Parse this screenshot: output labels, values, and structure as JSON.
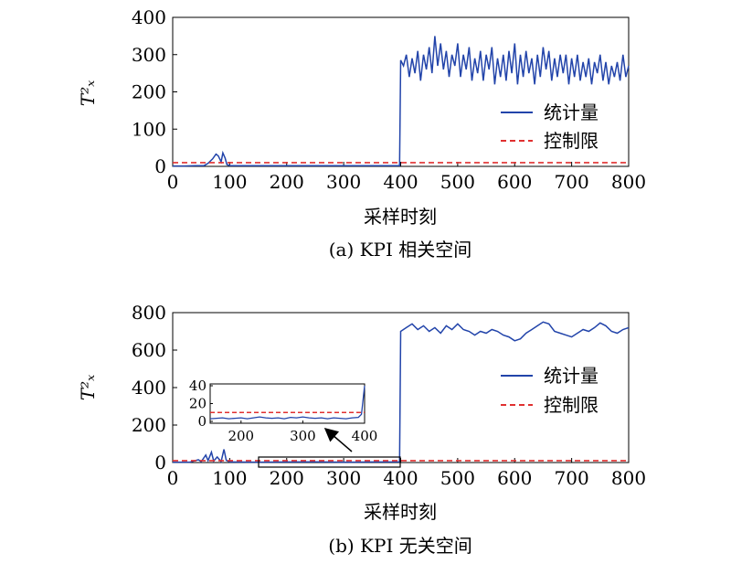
{
  "legend": {
    "series_label": "统计量",
    "limit_label": "控制限"
  },
  "colors": {
    "series": "#2244aa",
    "limit": "#e03030",
    "axis": "#000000"
  },
  "chart_data": [
    {
      "type": "line",
      "caption": "(a) KPI 相关空间",
      "xlabel": "采样时刻",
      "ylabel": "T²ₓ",
      "xlim": [
        0,
        800
      ],
      "ylim": [
        0,
        400
      ],
      "xticks": [
        0,
        100,
        200,
        300,
        400,
        500,
        600,
        700,
        800
      ],
      "yticks": [
        0,
        100,
        200,
        300,
        400
      ],
      "legend_position": "right",
      "grid": false,
      "control_limit": 10,
      "series": [
        {
          "name": "统计量",
          "style": "solid",
          "values": [
            [
              0,
              1
            ],
            [
              20,
              1
            ],
            [
              40,
              2
            ],
            [
              55,
              2
            ],
            [
              62,
              8
            ],
            [
              70,
              20
            ],
            [
              76,
              33
            ],
            [
              80,
              28
            ],
            [
              85,
              12
            ],
            [
              88,
              36
            ],
            [
              92,
              22
            ],
            [
              95,
              5
            ],
            [
              100,
              2
            ],
            [
              120,
              2
            ],
            [
              200,
              2
            ],
            [
              300,
              2
            ],
            [
              398,
              2
            ],
            [
              400,
              285
            ],
            [
              405,
              270
            ],
            [
              410,
              300
            ],
            [
              415,
              240
            ],
            [
              420,
              290
            ],
            [
              425,
              250
            ],
            [
              430,
              310
            ],
            [
              435,
              230
            ],
            [
              440,
              300
            ],
            [
              445,
              260
            ],
            [
              450,
              320
            ],
            [
              455,
              250
            ],
            [
              460,
              350
            ],
            [
              465,
              270
            ],
            [
              470,
              330
            ],
            [
              475,
              260
            ],
            [
              480,
              310
            ],
            [
              485,
              240
            ],
            [
              490,
              300
            ],
            [
              495,
              270
            ],
            [
              500,
              330
            ],
            [
              505,
              240
            ],
            [
              510,
              300
            ],
            [
              515,
              260
            ],
            [
              520,
              320
            ],
            [
              525,
              230
            ],
            [
              530,
              290
            ],
            [
              535,
              250
            ],
            [
              540,
              310
            ],
            [
              545,
              230
            ],
            [
              550,
              300
            ],
            [
              555,
              260
            ],
            [
              560,
              320
            ],
            [
              565,
              220
            ],
            [
              570,
              290
            ],
            [
              575,
              240
            ],
            [
              580,
              300
            ],
            [
              585,
              230
            ],
            [
              590,
              310
            ],
            [
              595,
              250
            ],
            [
              600,
              330
            ],
            [
              605,
              220
            ],
            [
              610,
              300
            ],
            [
              615,
              240
            ],
            [
              620,
              310
            ],
            [
              625,
              250
            ],
            [
              630,
              290
            ],
            [
              635,
              220
            ],
            [
              640,
              300
            ],
            [
              645,
              240
            ],
            [
              650,
              320
            ],
            [
              655,
              260
            ],
            [
              660,
              310
            ],
            [
              665,
              230
            ],
            [
              670,
              290
            ],
            [
              675,
              240
            ],
            [
              680,
              300
            ],
            [
              685,
              250
            ],
            [
              690,
              300
            ],
            [
              695,
              220
            ],
            [
              700,
              290
            ],
            [
              705,
              240
            ],
            [
              710,
              300
            ],
            [
              715,
              230
            ],
            [
              720,
              280
            ],
            [
              725,
              240
            ],
            [
              730,
              290
            ],
            [
              735,
              220
            ],
            [
              740,
              280
            ],
            [
              745,
              250
            ],
            [
              750,
              300
            ],
            [
              755,
              230
            ],
            [
              760,
              280
            ],
            [
              765,
              220
            ],
            [
              770,
              270
            ],
            [
              775,
              240
            ],
            [
              780,
              280
            ],
            [
              785,
              230
            ],
            [
              790,
              300
            ],
            [
              795,
              240
            ],
            [
              800,
              270
            ]
          ]
        },
        {
          "name": "控制限",
          "style": "dashed",
          "values": [
            [
              0,
              10
            ],
            [
              800,
              10
            ]
          ]
        }
      ]
    },
    {
      "type": "line",
      "caption": "(b) KPI 无关空间",
      "xlabel": "采样时刻",
      "ylabel": "T²ₓ",
      "xlim": [
        0,
        800
      ],
      "ylim": [
        0,
        800
      ],
      "xticks": [
        0,
        100,
        200,
        300,
        400,
        500,
        600,
        700,
        800
      ],
      "yticks": [
        0,
        200,
        400,
        600,
        800
      ],
      "legend_position": "right",
      "grid": false,
      "control_limit": 10,
      "series": [
        {
          "name": "统计量",
          "style": "solid",
          "values": [
            [
              0,
              2
            ],
            [
              30,
              2
            ],
            [
              45,
              15
            ],
            [
              50,
              5
            ],
            [
              58,
              40
            ],
            [
              62,
              10
            ],
            [
              68,
              55
            ],
            [
              72,
              8
            ],
            [
              78,
              30
            ],
            [
              85,
              5
            ],
            [
              90,
              70
            ],
            [
              94,
              12
            ],
            [
              100,
              3
            ],
            [
              150,
              2
            ],
            [
              200,
              3
            ],
            [
              250,
              4
            ],
            [
              300,
              2
            ],
            [
              350,
              3
            ],
            [
              398,
              4
            ],
            [
              400,
              700
            ],
            [
              410,
              720
            ],
            [
              420,
              740
            ],
            [
              430,
              710
            ],
            [
              440,
              730
            ],
            [
              450,
              700
            ],
            [
              460,
              720
            ],
            [
              470,
              690
            ],
            [
              480,
              730
            ],
            [
              490,
              710
            ],
            [
              500,
              740
            ],
            [
              510,
              710
            ],
            [
              520,
              700
            ],
            [
              530,
              680
            ],
            [
              540,
              700
            ],
            [
              550,
              690
            ],
            [
              560,
              710
            ],
            [
              570,
              700
            ],
            [
              580,
              680
            ],
            [
              590,
              670
            ],
            [
              600,
              650
            ],
            [
              610,
              660
            ],
            [
              620,
              690
            ],
            [
              630,
              710
            ],
            [
              640,
              730
            ],
            [
              650,
              750
            ],
            [
              660,
              740
            ],
            [
              670,
              700
            ],
            [
              680,
              690
            ],
            [
              690,
              680
            ],
            [
              700,
              670
            ],
            [
              710,
              690
            ],
            [
              720,
              710
            ],
            [
              730,
              700
            ],
            [
              740,
              720
            ],
            [
              750,
              745
            ],
            [
              760,
              730
            ],
            [
              770,
              700
            ],
            [
              780,
              690
            ],
            [
              790,
              710
            ],
            [
              800,
              720
            ]
          ]
        },
        {
          "name": "控制限",
          "style": "dashed",
          "values": [
            [
              0,
              10
            ],
            [
              800,
              10
            ]
          ]
        }
      ],
      "inset": {
        "xlim": [
          150,
          400
        ],
        "ylim": [
          0,
          40
        ],
        "xticks": [
          200,
          300,
          400
        ],
        "yticks": [
          0,
          20,
          40
        ],
        "zoom_box": {
          "x": [
            155,
            400
          ],
          "y": [
            0,
            40
          ]
        },
        "series_values": [
          [
            150,
            3
          ],
          [
            160,
            3.5
          ],
          [
            170,
            4
          ],
          [
            180,
            3
          ],
          [
            190,
            3.5
          ],
          [
            200,
            4
          ],
          [
            210,
            3
          ],
          [
            220,
            4
          ],
          [
            230,
            5
          ],
          [
            240,
            4
          ],
          [
            250,
            3.5
          ],
          [
            260,
            4
          ],
          [
            270,
            3
          ],
          [
            280,
            4.5
          ],
          [
            290,
            4
          ],
          [
            300,
            5
          ],
          [
            310,
            4
          ],
          [
            320,
            3.5
          ],
          [
            330,
            4
          ],
          [
            340,
            3
          ],
          [
            350,
            4
          ],
          [
            360,
            3.5
          ],
          [
            370,
            3
          ],
          [
            380,
            4
          ],
          [
            390,
            4.5
          ],
          [
            395,
            8
          ],
          [
            400,
            40
          ]
        ],
        "control_limit": 10
      }
    }
  ]
}
